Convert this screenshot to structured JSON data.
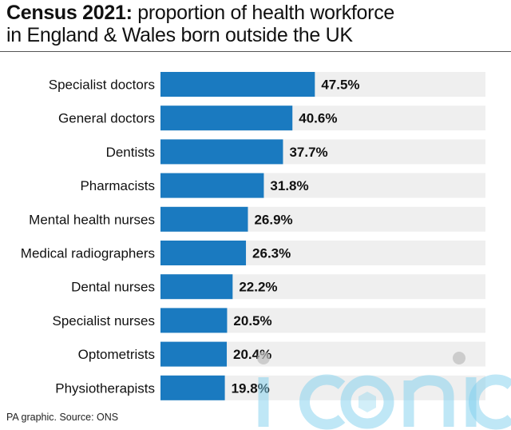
{
  "header": {
    "title_bold": "Census 2021:",
    "title_rest_line1": " proportion of health workforce",
    "title_line2": "in England & Wales born outside the UK"
  },
  "footer": {
    "source": "PA graphic. Source: ONS"
  },
  "watermark": {
    "text": "iconic"
  },
  "colors": {
    "bar": "#1a7ac0",
    "track": "#efefef",
    "text": "#111111"
  },
  "chart_data": {
    "type": "bar",
    "orientation": "horizontal",
    "categories": [
      "Specialist doctors",
      "General doctors",
      "Dentists",
      "Pharmacists",
      "Mental health nurses",
      "Medical radiographers",
      "Dental nurses",
      "Specialist nurses",
      "Optometrists",
      "Physiotherapists"
    ],
    "values": [
      47.5,
      40.6,
      37.7,
      31.8,
      26.9,
      26.3,
      22.2,
      20.5,
      20.4,
      19.8
    ],
    "value_labels": [
      "47.5%",
      "40.6%",
      "37.7%",
      "31.8%",
      "26.9%",
      "26.3%",
      "22.2%",
      "20.5%",
      "20.4%",
      "19.8%"
    ],
    "xlim": [
      0,
      100
    ],
    "grid": false,
    "legend": "none"
  }
}
